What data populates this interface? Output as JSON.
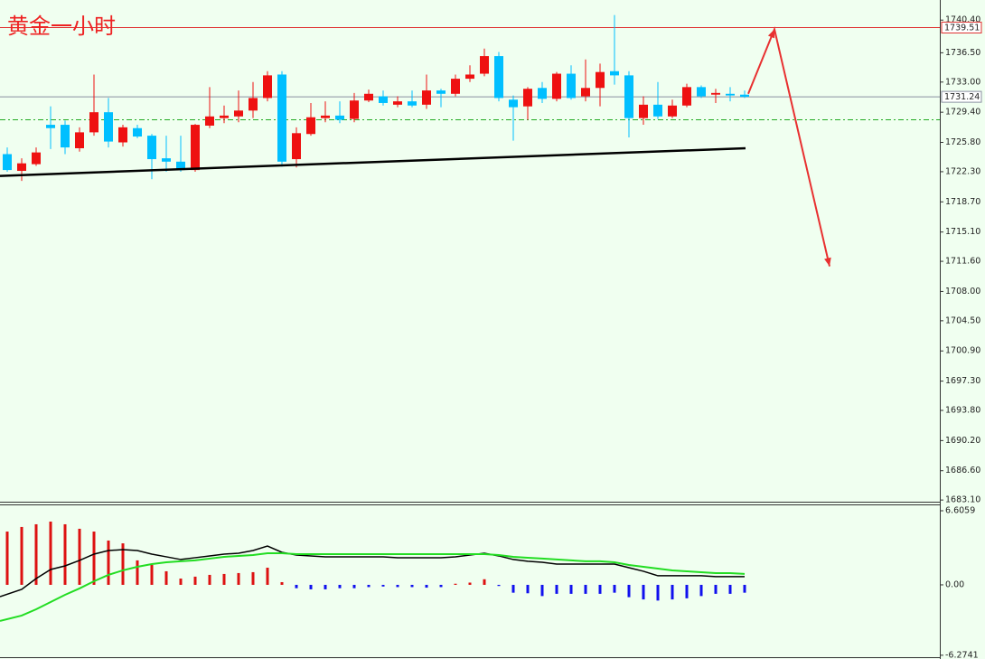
{
  "chart_data": [
    {
      "type": "candlestick",
      "title": "黄金一小时",
      "open": [
        1724.4,
        1722.4,
        1723.2,
        1727.9,
        1727.9,
        1725.1,
        1727.0,
        1729.4,
        1725.8,
        1727.5,
        1726.6,
        1723.9,
        1723.5,
        1722.5,
        1727.8,
        1728.7,
        1728.9,
        1729.6,
        1731.1,
        1733.9,
        1723.8,
        1726.8,
        1728.7,
        1729.0,
        1728.6,
        1730.8,
        1731.3,
        1730.3,
        1730.7,
        1730.3,
        1732.0,
        1731.6,
        1733.4,
        1734.0,
        1736.1,
        1730.9,
        1730.1,
        1732.3,
        1731.0,
        1734.0,
        1731.3,
        1732.3,
        1734.3,
        1733.8,
        1728.7,
        1730.3,
        1728.9,
        1730.2,
        1732.4,
        1731.5,
        1731.6,
        1731.5
      ],
      "high": [
        1725.2,
        1723.9,
        1725.2,
        1730.1,
        1728.4,
        1727.6,
        1733.9,
        1731.1,
        1727.9,
        1727.9,
        1726.8,
        1726.6,
        1726.6,
        1728.0,
        1732.4,
        1730.2,
        1732.0,
        1733.0,
        1734.3,
        1734.3,
        1727.6,
        1730.5,
        1730.7,
        1730.7,
        1731.7,
        1732.1,
        1732.0,
        1731.3,
        1732.0,
        1733.9,
        1732.2,
        1733.9,
        1735.0,
        1737.0,
        1736.6,
        1731.4,
        1732.4,
        1733.0,
        1734.2,
        1735.0,
        1735.7,
        1735.2,
        1741.0,
        1734.3,
        1731.3,
        1733.0,
        1730.9,
        1732.8,
        1732.6,
        1732.2,
        1732.4,
        1732.0
      ],
      "low": [
        1722.3,
        1721.2,
        1723.0,
        1725.0,
        1724.4,
        1724.7,
        1726.6,
        1725.2,
        1725.3,
        1726.3,
        1721.4,
        1722.3,
        1722.3,
        1722.3,
        1727.5,
        1728.1,
        1728.2,
        1728.7,
        1730.7,
        1722.9,
        1722.8,
        1726.6,
        1728.2,
        1728.1,
        1728.2,
        1730.6,
        1730.2,
        1730.0,
        1730.0,
        1729.8,
        1730.0,
        1731.3,
        1733.0,
        1733.7,
        1730.7,
        1726.0,
        1728.5,
        1730.5,
        1730.7,
        1730.9,
        1730.7,
        1730.1,
        1732.7,
        1726.4,
        1727.9,
        1728.6,
        1728.7,
        1730.0,
        1731.1,
        1730.5,
        1730.7,
        1731.1
      ],
      "close": [
        1722.5,
        1723.3,
        1724.6,
        1727.5,
        1725.2,
        1727.0,
        1729.4,
        1725.9,
        1727.6,
        1726.5,
        1723.8,
        1723.5,
        1722.5,
        1727.9,
        1728.9,
        1729.0,
        1729.6,
        1731.1,
        1733.8,
        1723.5,
        1726.9,
        1728.8,
        1729.0,
        1728.5,
        1730.8,
        1731.6,
        1730.5,
        1730.7,
        1730.2,
        1732.0,
        1731.6,
        1733.4,
        1733.9,
        1736.1,
        1731.1,
        1730.0,
        1732.2,
        1731.0,
        1734.0,
        1731.1,
        1732.3,
        1734.2,
        1733.8,
        1728.7,
        1730.3,
        1728.9,
        1730.2,
        1732.4,
        1731.3,
        1731.7,
        1731.4,
        1731.24
      ],
      "up_color": "#ee1111",
      "down_color": "#00bfff",
      "ylim": [
        1682.9,
        1742.8
      ],
      "yticks": [
        {
          "value": 1740.4,
          "label": "1740.40"
        },
        {
          "value": 1736.5,
          "label": "1736.50"
        },
        {
          "value": 1733.0,
          "label": "1733.00"
        },
        {
          "value": 1729.4,
          "label": "1729.40"
        },
        {
          "value": 1725.8,
          "label": "1725.80"
        },
        {
          "value": 1722.3,
          "label": "1722.30"
        },
        {
          "value": 1718.7,
          "label": "1718.70"
        },
        {
          "value": 1715.1,
          "label": "1715.10"
        },
        {
          "value": 1711.6,
          "label": "1711.60"
        },
        {
          "value": 1708.0,
          "label": "1708.00"
        },
        {
          "value": 1704.5,
          "label": "1704.50"
        },
        {
          "value": 1700.9,
          "label": "1700.90"
        },
        {
          "value": 1697.3,
          "label": "1697.30"
        },
        {
          "value": 1693.8,
          "label": "1693.80"
        },
        {
          "value": 1690.2,
          "label": "1690.20"
        },
        {
          "value": 1686.6,
          "label": "1686.60"
        },
        {
          "value": 1683.1,
          "label": "1683.10"
        }
      ],
      "price_lines": [
        {
          "value": 1739.51,
          "color": "#e03030"
        },
        {
          "value": 1731.24,
          "color": "#8a8fa0"
        }
      ],
      "support_level": 1728.5,
      "trendline": [
        1721.8,
        1725.1
      ],
      "projection": [
        1731.6,
        1739.3,
        1711.0
      ]
    },
    {
      "type": "macd",
      "histogram": [
        4.75,
        5.16,
        5.4,
        5.64,
        5.4,
        5.0,
        4.75,
        3.95,
        3.7,
        2.18,
        1.77,
        1.21,
        0.56,
        0.73,
        0.89,
        0.97,
        1.05,
        1.13,
        1.53,
        0.24,
        -0.3,
        -0.4,
        -0.4,
        -0.3,
        -0.3,
        -0.2,
        -0.15,
        -0.2,
        -0.2,
        -0.25,
        -0.2,
        0.1,
        0.2,
        0.5,
        -0.1,
        -0.7,
        -0.75,
        -1.0,
        -0.8,
        -0.8,
        -0.8,
        -0.8,
        -0.7,
        -1.1,
        -1.3,
        -1.4,
        -1.3,
        -1.2,
        -1.0,
        -0.8,
        -0.8,
        -0.7
      ],
      "up_color": "#dd1111",
      "down_color": "#1010ee",
      "series": [
        {
          "color": "#000000",
          "values": [
            -1.05,
            -0.4,
            0.56,
            1.37,
            1.69,
            2.18,
            2.74,
            3.06,
            3.14,
            3.06,
            2.74,
            2.5,
            2.26,
            2.42,
            2.58,
            2.74,
            2.82,
            3.06,
            3.46,
            2.9,
            2.66,
            2.58,
            2.5,
            2.5,
            2.5,
            2.5,
            2.5,
            2.42,
            2.42,
            2.42,
            2.42,
            2.5,
            2.66,
            2.82,
            2.58,
            2.26,
            2.1,
            2.01,
            1.85,
            1.85,
            1.85,
            1.85,
            1.85,
            1.53,
            1.21,
            0.81,
            0.81,
            0.81,
            0.81,
            0.73,
            0.73,
            0.73
          ]
        },
        {
          "color": "#22dd22",
          "values": [
            -3.22,
            -2.74,
            -2.18,
            -1.53,
            -0.89,
            -0.32,
            0.32,
            0.89,
            1.29,
            1.61,
            1.85,
            2.01,
            2.1,
            2.18,
            2.34,
            2.5,
            2.58,
            2.66,
            2.82,
            2.82,
            2.74,
            2.74,
            2.74,
            2.74,
            2.74,
            2.74,
            2.74,
            2.74,
            2.74,
            2.74,
            2.74,
            2.74,
            2.74,
            2.74,
            2.66,
            2.5,
            2.42,
            2.34,
            2.26,
            2.18,
            2.1,
            2.1,
            2.01,
            1.77,
            1.61,
            1.45,
            1.29,
            1.21,
            1.13,
            1.05,
            1.05,
            0.97
          ]
        }
      ],
      "ylim": [
        -6.53,
        7.17
      ],
      "yticks": [
        6.6059,
        {
          "value": 0,
          "label": "0.00"
        },
        -6.2741
      ]
    }
  ]
}
